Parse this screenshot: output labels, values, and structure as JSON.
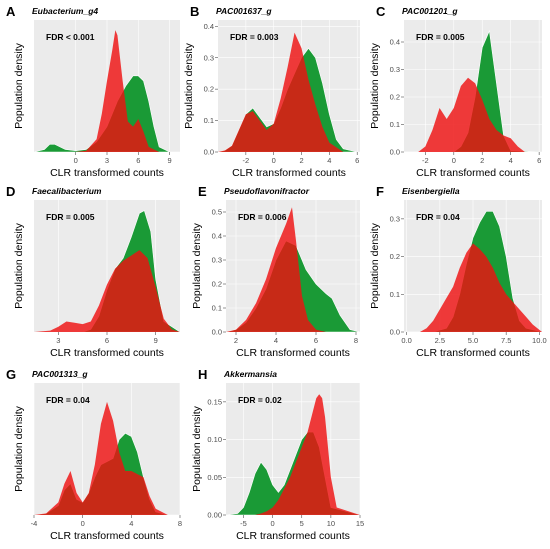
{
  "figure": {
    "colors": {
      "panel_background": "#ebebeb",
      "gridline": "#ffffff",
      "green_group": "#1a9a36",
      "red_group": "#ee1111"
    }
  },
  "chart_data": [
    {
      "panel": "A",
      "title": "Eubacterium_g4",
      "fdr": "FDR < 0.001",
      "type": "area",
      "xlabel": "CLR transformed counts",
      "ylabel": "Population density",
      "xlim": [
        -4,
        10
      ],
      "ylim": [
        0,
        0.52
      ],
      "xticks": [
        0,
        3,
        6,
        9
      ],
      "yticks": [],
      "grid": true,
      "legend": "none",
      "series": [
        {
          "color": "green",
          "x": [
            -4,
            -3,
            -2.5,
            -2,
            -1,
            0,
            1,
            2,
            3,
            4,
            4.8,
            5.5,
            6,
            6.5,
            7,
            7.5,
            8,
            9,
            10
          ],
          "y": [
            0,
            0.01,
            0.03,
            0.03,
            0.01,
            0.005,
            0.01,
            0.04,
            0.1,
            0.2,
            0.26,
            0.3,
            0.3,
            0.28,
            0.2,
            0.1,
            0.02,
            0,
            0
          ]
        },
        {
          "color": "red",
          "x": [
            -4,
            0,
            1,
            2,
            2.5,
            3,
            3.5,
            3.8,
            4,
            4.5,
            5,
            5.5,
            6,
            6.5,
            7,
            8,
            10
          ],
          "y": [
            0,
            0,
            0.005,
            0.05,
            0.15,
            0.28,
            0.4,
            0.48,
            0.46,
            0.28,
            0.12,
            0.1,
            0.13,
            0.08,
            0.02,
            0,
            0
          ]
        }
      ]
    },
    {
      "panel": "B",
      "title": "PAC001637_g",
      "fdr": "FDR = 0.003",
      "type": "area",
      "xlabel": "CLR transformed counts",
      "ylabel": "Population density",
      "xlim": [
        -4,
        6.2
      ],
      "ylim": [
        0,
        0.42
      ],
      "xticks": [
        -2,
        0,
        2,
        4,
        6
      ],
      "yticks": [
        0,
        0.1,
        0.2,
        0.3,
        0.4
      ],
      "grid": true,
      "legend": "none",
      "series": [
        {
          "color": "green",
          "x": [
            -4,
            -3.5,
            -3,
            -2.5,
            -2,
            -1.5,
            -1,
            -0.5,
            0,
            0.5,
            1,
            1.5,
            2,
            2.5,
            3,
            3.5,
            4,
            4.5,
            5,
            6
          ],
          "y": [
            0,
            0.005,
            0.02,
            0.07,
            0.12,
            0.14,
            0.11,
            0.08,
            0.09,
            0.14,
            0.2,
            0.25,
            0.3,
            0.33,
            0.3,
            0.22,
            0.12,
            0.04,
            0.01,
            0
          ]
        },
        {
          "color": "red",
          "x": [
            -4,
            -3.5,
            -3,
            -2.5,
            -2,
            -1.5,
            -1,
            -0.5,
            0,
            0.5,
            1,
            1.5,
            2,
            2.5,
            3,
            3.5,
            4,
            5,
            6
          ],
          "y": [
            0,
            0.005,
            0.02,
            0.07,
            0.12,
            0.13,
            0.1,
            0.07,
            0.09,
            0.17,
            0.27,
            0.38,
            0.33,
            0.23,
            0.15,
            0.08,
            0.03,
            0,
            0
          ]
        }
      ]
    },
    {
      "panel": "C",
      "title": "PAC001201_g",
      "fdr": "FDR = 0.005",
      "type": "area",
      "xlabel": "CLR transformed counts",
      "ylabel": "Population density",
      "xlim": [
        -3.5,
        6.2
      ],
      "ylim": [
        0,
        0.48
      ],
      "xticks": [
        -2,
        0,
        2,
        4,
        6
      ],
      "yticks": [
        0,
        0.1,
        0.2,
        0.3,
        0.4
      ],
      "grid": true,
      "legend": "none",
      "series": [
        {
          "color": "green",
          "x": [
            -3.5,
            0,
            0.5,
            1,
            1.5,
            2,
            2.5,
            3,
            3.5,
            4,
            6
          ],
          "y": [
            0,
            0,
            0.02,
            0.07,
            0.2,
            0.38,
            0.44,
            0.25,
            0.06,
            0.005,
            0
          ]
        },
        {
          "color": "red",
          "x": [
            -3.5,
            -2.5,
            -2,
            -1.5,
            -1,
            -0.5,
            0,
            0.5,
            1,
            1.5,
            2,
            2.5,
            3,
            3.5,
            4,
            4.5,
            5,
            6
          ],
          "y": [
            0,
            0,
            0.02,
            0.08,
            0.16,
            0.12,
            0.16,
            0.24,
            0.27,
            0.25,
            0.19,
            0.12,
            0.08,
            0.06,
            0.05,
            0.02,
            0,
            0
          ]
        }
      ]
    },
    {
      "panel": "D",
      "title": "Faecalibacterium",
      "fdr": "FDR = 0.005",
      "type": "area",
      "xlabel": "CLR transformed counts",
      "ylabel": "Population density",
      "xlim": [
        1.5,
        10.5
      ],
      "ylim": [
        0,
        0.5
      ],
      "xticks": [
        3,
        6,
        9
      ],
      "yticks": [],
      "grid": true,
      "legend": "none",
      "series": [
        {
          "color": "green",
          "x": [
            1.5,
            4.5,
            5,
            5.5,
            6,
            6.5,
            7,
            7.5,
            8,
            8.3,
            8.7,
            9,
            9.5,
            10.5
          ],
          "y": [
            0,
            0,
            0.01,
            0.06,
            0.16,
            0.24,
            0.28,
            0.36,
            0.45,
            0.46,
            0.38,
            0.2,
            0.04,
            0
          ]
        },
        {
          "color": "red",
          "x": [
            1.5,
            2.5,
            3,
            3.5,
            4,
            4.5,
            5,
            5.5,
            6,
            6.5,
            7,
            7.5,
            8,
            8.5,
            9,
            9.5,
            10,
            10.5
          ],
          "y": [
            0,
            0.005,
            0.02,
            0.04,
            0.035,
            0.03,
            0.04,
            0.1,
            0.18,
            0.24,
            0.27,
            0.29,
            0.31,
            0.28,
            0.17,
            0.05,
            0.01,
            0
          ]
        }
      ]
    },
    {
      "panel": "E",
      "title": "Pseudoflavonifractor",
      "fdr": "FDR = 0.006",
      "type": "area",
      "xlabel": "CLR transformed counts",
      "ylabel": "Population density",
      "xlim": [
        1.5,
        8.2
      ],
      "ylim": [
        0,
        0.55
      ],
      "xticks": [
        2,
        4,
        6,
        8
      ],
      "yticks": [
        0,
        0.1,
        0.2,
        0.3,
        0.4,
        0.5
      ],
      "grid": true,
      "legend": "none",
      "series": [
        {
          "color": "green",
          "x": [
            1.5,
            2,
            2.5,
            3,
            3.5,
            4,
            4.5,
            5,
            5.5,
            6,
            6.5,
            6.8,
            7.2,
            7.7,
            8.2
          ],
          "y": [
            0,
            0.01,
            0.04,
            0.1,
            0.18,
            0.3,
            0.38,
            0.36,
            0.26,
            0.2,
            0.16,
            0.14,
            0.07,
            0.01,
            0
          ]
        },
        {
          "color": "red",
          "x": [
            1.5,
            2,
            2.5,
            3,
            3.5,
            4,
            4.5,
            4.8,
            5,
            5.3,
            5.6,
            6,
            6.5,
            7,
            8.2
          ],
          "y": [
            0,
            0.01,
            0.05,
            0.12,
            0.22,
            0.35,
            0.45,
            0.52,
            0.38,
            0.15,
            0.05,
            0.01,
            0,
            0,
            0
          ]
        }
      ]
    },
    {
      "panel": "F",
      "title": "Eisenbergiella",
      "fdr": "FDR = 0.04",
      "type": "area",
      "xlabel": "CLR transformed counts",
      "ylabel": "Population density",
      "xlim": [
        -0.2,
        10.2
      ],
      "ylim": [
        0,
        0.35
      ],
      "xticks": [
        0.0,
        2.5,
        5.0,
        7.5,
        10.0
      ],
      "yticks": [
        0,
        0.1,
        0.2,
        0.3
      ],
      "grid": true,
      "legend": "none",
      "series": [
        {
          "color": "green",
          "x": [
            -0.2,
            2,
            3,
            3.5,
            4,
            4.5,
            5,
            5.5,
            6,
            6.5,
            7,
            7.5,
            8,
            8.5,
            9,
            10.2
          ],
          "y": [
            0,
            0,
            0.01,
            0.04,
            0.1,
            0.18,
            0.25,
            0.29,
            0.32,
            0.32,
            0.28,
            0.2,
            0.09,
            0.03,
            0.01,
            0
          ]
        },
        {
          "color": "red",
          "x": [
            -0.2,
            1,
            1.5,
            2,
            2.5,
            3,
            3.5,
            4,
            4.5,
            5,
            5.5,
            6,
            6.5,
            7,
            7.5,
            8,
            8.5,
            9,
            9.5,
            10.2
          ],
          "y": [
            0,
            0,
            0.01,
            0.03,
            0.06,
            0.09,
            0.12,
            0.17,
            0.21,
            0.235,
            0.22,
            0.2,
            0.17,
            0.13,
            0.1,
            0.08,
            0.06,
            0.04,
            0.02,
            0
          ]
        }
      ]
    },
    {
      "panel": "G",
      "title": "PAC001313_g",
      "fdr": "FDR = 0.04",
      "type": "area",
      "xlabel": "CLR transformed counts",
      "ylabel": "Population density",
      "xlim": [
        -4,
        8
      ],
      "ylim": [
        0,
        0.42
      ],
      "xticks": [
        -4,
        0,
        4,
        8
      ],
      "yticks": [],
      "grid": true,
      "legend": "none",
      "series": [
        {
          "color": "green",
          "x": [
            -4,
            -3,
            -2,
            -1.5,
            -1,
            -0.5,
            0,
            0.5,
            1,
            1.5,
            2,
            2.5,
            3,
            3.5,
            4,
            4.5,
            5,
            5.5,
            6,
            7,
            8
          ],
          "y": [
            0,
            0.005,
            0.03,
            0.08,
            0.1,
            0.05,
            0.04,
            0.07,
            0.12,
            0.16,
            0.17,
            0.18,
            0.24,
            0.26,
            0.25,
            0.2,
            0.12,
            0.05,
            0.01,
            0,
            0
          ]
        },
        {
          "color": "red",
          "x": [
            -4,
            -3,
            -2,
            -1.5,
            -1,
            -0.5,
            0,
            0.5,
            1,
            1.5,
            2,
            2.5,
            3,
            3.5,
            4,
            4.5,
            5,
            5.5,
            6,
            7,
            8
          ],
          "y": [
            0,
            0.005,
            0.04,
            0.1,
            0.14,
            0.07,
            0.04,
            0.07,
            0.16,
            0.29,
            0.36,
            0.3,
            0.2,
            0.14,
            0.14,
            0.13,
            0.12,
            0.06,
            0.02,
            0,
            0
          ]
        }
      ]
    },
    {
      "panel": "H",
      "title": "Akkermansia",
      "fdr": "FDR = 0.02",
      "type": "area",
      "xlabel": "CLR transformed counts",
      "ylabel": "Population density",
      "xlim": [
        -8,
        15
      ],
      "ylim": [
        0,
        0.175
      ],
      "xticks": [
        -5,
        0,
        5,
        10,
        15
      ],
      "yticks": [
        0,
        0.05,
        0.1,
        0.15
      ],
      "grid": true,
      "legend": "none",
      "series": [
        {
          "color": "green",
          "x": [
            -8,
            -6,
            -5,
            -4,
            -3,
            -2,
            -1,
            0,
            1,
            2,
            3,
            4,
            5,
            6,
            7,
            8,
            9,
            10,
            15
          ],
          "y": [
            0,
            0.002,
            0.01,
            0.03,
            0.055,
            0.07,
            0.06,
            0.04,
            0.03,
            0.04,
            0.06,
            0.08,
            0.1,
            0.11,
            0.11,
            0.09,
            0.05,
            0.01,
            0
          ]
        },
        {
          "color": "red",
          "x": [
            -8,
            -3,
            -2,
            -1,
            0,
            1,
            2,
            3,
            4,
            5,
            6,
            7,
            7.5,
            8,
            8.5,
            9,
            9.5,
            10,
            11,
            15
          ],
          "y": [
            0,
            0,
            0.002,
            0.005,
            0.01,
            0.02,
            0.035,
            0.05,
            0.07,
            0.09,
            0.11,
            0.14,
            0.155,
            0.16,
            0.155,
            0.13,
            0.09,
            0.05,
            0.01,
            0
          ]
        }
      ]
    }
  ]
}
